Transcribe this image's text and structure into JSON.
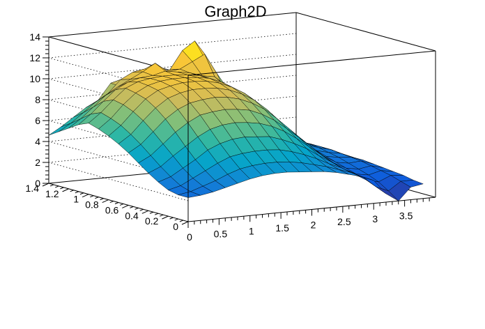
{
  "chart_data": {
    "type": "surface",
    "title": "Graph2D",
    "xlim": [
      0,
      4
    ],
    "ylim": [
      0,
      1.4
    ],
    "zlim": [
      0,
      14
    ],
    "grid": true,
    "palette": [
      "#352a87",
      "#0f5cdd",
      "#1481d6",
      "#06a4ca",
      "#2eb7a4",
      "#87bf77",
      "#d1bb59",
      "#fec832",
      "#f9fb0e"
    ],
    "x_ticks": [
      "0",
      "0.5",
      "1",
      "1.5",
      "2",
      "2.5",
      "3",
      "3.5"
    ],
    "x_tick_values": [
      0,
      0.5,
      1,
      1.5,
      2,
      2.5,
      3,
      3.5
    ],
    "y_ticks": [
      "0",
      "0.2",
      "0.4",
      "0.6",
      "0.8",
      "1",
      "1.2",
      "1.4"
    ],
    "y_tick_values": [
      0,
      0.2,
      0.4,
      0.6,
      0.8,
      1.0,
      1.2,
      1.4
    ],
    "z_ticks": [
      "0",
      "2",
      "4",
      "6",
      "8",
      "10",
      "12",
      "14"
    ],
    "z_tick_values": [
      0,
      2,
      4,
      6,
      8,
      10,
      12,
      14
    ],
    "x_grid": [
      0,
      0.2,
      0.4,
      0.6,
      0.8,
      1.0,
      1.2,
      1.4,
      1.6,
      1.8,
      2.0,
      2.2,
      2.4,
      2.6,
      2.8,
      3.0,
      3.2,
      3.4,
      3.6,
      3.8
    ],
    "y_grid": [
      0,
      0.1,
      0.2,
      0.3,
      0.4,
      0.5,
      0.6,
      0.7,
      0.8,
      0.9,
      1.0,
      1.1,
      1.2,
      1.3,
      1.4
    ],
    "z_values": [
      [
        2.3,
        2.3,
        2.5,
        3.0,
        3.6,
        4.3,
        5.0,
        5.6,
        6.1,
        6.5,
        6.8,
        6.4,
        5.8,
        5.2,
        4.6
      ],
      [
        2.4,
        2.5,
        2.8,
        3.4,
        4.1,
        4.9,
        5.7,
        6.4,
        7.0,
        7.4,
        7.7,
        7.3,
        6.6,
        5.9,
        5.3
      ],
      [
        2.6,
        2.9,
        3.4,
        4.1,
        5.0,
        5.9,
        6.8,
        7.6,
        8.2,
        8.6,
        8.8,
        8.4,
        7.6,
        6.8,
        6.1
      ],
      [
        2.9,
        3.3,
        4.0,
        4.8,
        5.8,
        6.9,
        7.9,
        8.7,
        9.3,
        9.6,
        9.8,
        9.4,
        8.6,
        7.7,
        6.9
      ],
      [
        3.2,
        3.8,
        4.6,
        5.6,
        6.6,
        7.7,
        8.7,
        9.5,
        10.0,
        10.2,
        10.3,
        10.0,
        9.3,
        8.4,
        7.5
      ],
      [
        3.5,
        4.2,
        5.1,
        6.1,
        7.2,
        8.3,
        9.2,
        9.9,
        10.3,
        10.5,
        10.5,
        10.3,
        9.9,
        9.6,
        9.0
      ],
      [
        3.7,
        4.4,
        5.3,
        6.4,
        7.5,
        8.5,
        9.4,
        10.1,
        10.5,
        10.6,
        10.6,
        10.4,
        10.5,
        10.2,
        8.5
      ],
      [
        3.8,
        4.5,
        5.4,
        6.5,
        7.6,
        8.6,
        9.5,
        10.1,
        10.5,
        10.6,
        10.6,
        10.7,
        11.2,
        10.4,
        8.0
      ],
      [
        3.8,
        4.5,
        5.4,
        6.4,
        7.5,
        8.5,
        9.4,
        10.0,
        10.4,
        10.5,
        10.5,
        10.5,
        10.3,
        9.8,
        7.6
      ],
      [
        3.7,
        4.4,
        5.3,
        6.3,
        7.3,
        8.3,
        9.1,
        9.7,
        10.1,
        10.3,
        10.3,
        10.3,
        10.4,
        10.1,
        7.2
      ],
      [
        3.6,
        4.2,
        5.0,
        5.9,
        6.9,
        7.8,
        8.6,
        9.2,
        9.6,
        9.8,
        9.8,
        9.9,
        11.0,
        11.8,
        6.8
      ],
      [
        3.5,
        3.9,
        4.6,
        5.4,
        6.3,
        7.1,
        7.9,
        8.5,
        8.9,
        9.1,
        9.2,
        9.7,
        11.6,
        12.6,
        6.5
      ],
      [
        3.3,
        3.6,
        4.1,
        4.8,
        5.5,
        6.2,
        6.9,
        7.5,
        7.9,
        8.1,
        8.2,
        8.5,
        9.6,
        10.4,
        6.2
      ],
      [
        3.0,
        3.2,
        3.5,
        4.0,
        4.6,
        5.2,
        5.8,
        6.3,
        6.7,
        7.0,
        7.1,
        7.0,
        6.8,
        6.5,
        5.9
      ],
      [
        2.7,
        2.8,
        3.0,
        3.3,
        3.7,
        4.2,
        4.7,
        5.1,
        5.5,
        5.8,
        5.9,
        5.9,
        5.7,
        5.4,
        5.1
      ],
      [
        2.2,
        2.2,
        2.3,
        2.5,
        2.8,
        3.2,
        3.6,
        4.0,
        4.3,
        4.5,
        4.6,
        4.6,
        4.5,
        4.2,
        4.0
      ],
      [
        0.8,
        1.2,
        1.6,
        1.9,
        2.2,
        2.5,
        2.8,
        3.1,
        3.4,
        3.6,
        3.7,
        3.7,
        3.6,
        3.4,
        3.2
      ],
      [
        0.0,
        0.7,
        1.3,
        1.7,
        2.0,
        2.3,
        2.6,
        2.8,
        3.0,
        3.1,
        3.1,
        3.1,
        3.0,
        2.9,
        2.7
      ],
      [
        1.2,
        1.5,
        1.8,
        2.0,
        2.2,
        2.4,
        2.5,
        2.6,
        2.7,
        2.7,
        2.7,
        2.6,
        2.5,
        2.4,
        2.3
      ],
      [
        1.4,
        1.5,
        1.7,
        1.8,
        1.9,
        2.0,
        2.1,
        2.1,
        2.1,
        2.1,
        2.0,
        2.0,
        1.9,
        1.8,
        1.7
      ]
    ]
  }
}
